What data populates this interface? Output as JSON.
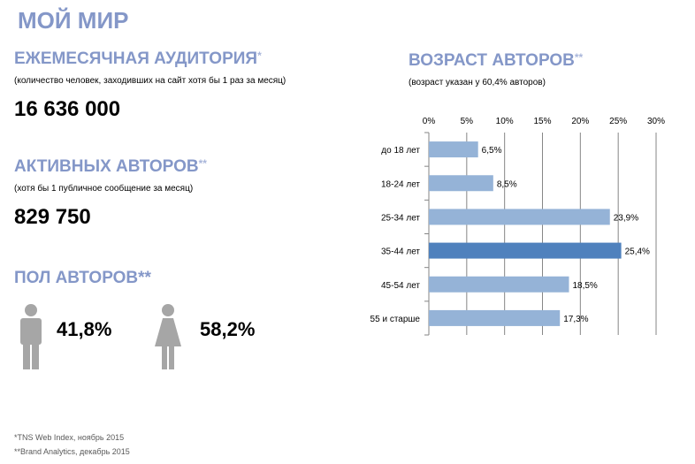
{
  "title": "МОЙ МИР",
  "audience": {
    "heading": "ЕЖЕМЕСЯЧНАЯ АУДИТОРИЯ",
    "mark": "*",
    "note": "(количество человек, заходивших на сайт хотя бы 1 раз за месяц)",
    "value": "16 636 000"
  },
  "authors": {
    "heading": "АКТИВНЫХ АВТОРОВ",
    "mark": "**",
    "note": "(хотя бы 1 публичное сообщение за месяц)",
    "value": "829 750"
  },
  "gender": {
    "heading": "ПОЛ АВТОРОВ**",
    "male": "41,8%",
    "female": "58,2%"
  },
  "footnotes": [
    "*TNS Web Index, ноябрь 2015",
    "**Brand Analytics, декабрь 2015"
  ],
  "age": {
    "heading": "ВОЗРАСТ АВТОРОВ",
    "mark": "**",
    "note": "(возраст указан у 60,4% авторов)"
  },
  "chart_data": {
    "type": "bar",
    "orientation": "horizontal",
    "categories": [
      "до 18 лет",
      "18-24 лет",
      "25-34 лет",
      "35-44 лет",
      "45-54 лет",
      "55 и старше"
    ],
    "values": [
      6.5,
      8.5,
      23.9,
      25.4,
      18.5,
      17.3
    ],
    "labels": [
      "6,5%",
      "8,5%",
      "23,9%",
      "25,4%",
      "18,5%",
      "17,3%"
    ],
    "highlight_index": 3,
    "xlim": [
      0,
      30
    ],
    "ticks": [
      "0%",
      "5%",
      "10%",
      "15%",
      "20%",
      "25%",
      "30%"
    ],
    "grid": true,
    "colors": {
      "bar": "#95b3d7",
      "highlight": "#4f81bd"
    }
  }
}
